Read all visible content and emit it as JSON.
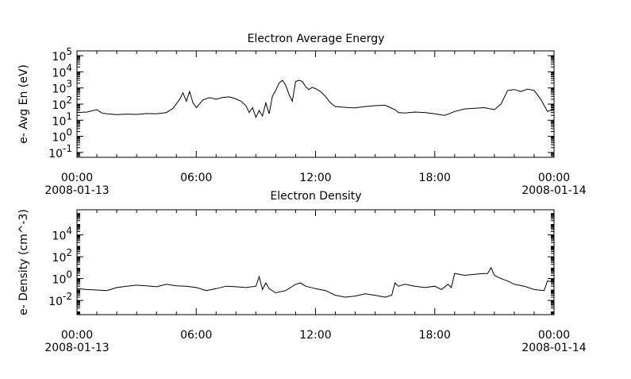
{
  "chart_data": [
    {
      "type": "line",
      "title": "Electron Average Energy",
      "xlabel": "",
      "ylabel": "e- Avg En (eV)",
      "yscale": "log",
      "ylim": [
        0.05,
        200000
      ],
      "xlim": [
        "2008-01-13 00:00",
        "2008-01-14 00:00"
      ],
      "grid": false,
      "x_ticks": [
        {
          "time": "00:00",
          "date": "2008-01-13"
        },
        {
          "time": "06:00",
          "date": ""
        },
        {
          "time": "12:00",
          "date": ""
        },
        {
          "time": "18:00",
          "date": ""
        },
        {
          "time": "00:00",
          "date": "2008-01-14"
        }
      ],
      "y_ticks": [
        {
          "base": "10",
          "exp": "-1",
          "value": 0.1
        },
        {
          "base": "10",
          "exp": "0",
          "value": 1
        },
        {
          "base": "10",
          "exp": "1",
          "value": 10
        },
        {
          "base": "10",
          "exp": "2",
          "value": 100
        },
        {
          "base": "10",
          "exp": "3",
          "value": 1000
        },
        {
          "base": "10",
          "exp": "4",
          "value": 10000
        },
        {
          "base": "10",
          "exp": "5",
          "value": 100000
        }
      ],
      "x": [
        "00:00",
        "00:30",
        "01:00",
        "01:15",
        "01:30",
        "02:00",
        "02:30",
        "03:00",
        "03:30",
        "04:00",
        "04:30",
        "04:50",
        "05:10",
        "05:20",
        "05:30",
        "05:40",
        "05:50",
        "06:00",
        "06:20",
        "06:40",
        "07:00",
        "07:20",
        "07:40",
        "08:00",
        "08:15",
        "08:30",
        "08:40",
        "08:50",
        "09:00",
        "09:10",
        "09:20",
        "09:30",
        "09:40",
        "09:50",
        "10:00",
        "10:10",
        "10:20",
        "10:30",
        "10:40",
        "10:50",
        "11:00",
        "11:10",
        "11:20",
        "11:30",
        "11:40",
        "11:50",
        "12:00",
        "12:15",
        "12:30",
        "12:45",
        "13:00",
        "13:20",
        "13:40",
        "14:00",
        "14:30",
        "15:00",
        "15:30",
        "16:00",
        "16:10",
        "16:30",
        "17:00",
        "17:30",
        "18:00",
        "18:30",
        "19:00",
        "19:30",
        "20:00",
        "20:30",
        "21:00",
        "21:20",
        "21:40",
        "22:00",
        "22:20",
        "22:40",
        "23:00",
        "23:20",
        "23:40",
        "24:00"
      ],
      "values": [
        30,
        32,
        45,
        28,
        25,
        22,
        24,
        23,
        26,
        25,
        30,
        55,
        200,
        500,
        150,
        600,
        120,
        60,
        180,
        250,
        200,
        260,
        280,
        210,
        150,
        80,
        30,
        60,
        15,
        40,
        18,
        120,
        25,
        300,
        700,
        2000,
        3000,
        1500,
        400,
        150,
        2500,
        3000,
        2600,
        1200,
        800,
        1100,
        900,
        600,
        300,
        120,
        70,
        65,
        60,
        58,
        70,
        80,
        85,
        45,
        30,
        28,
        32,
        30,
        25,
        20,
        35,
        50,
        55,
        60,
        45,
        100,
        700,
        800,
        600,
        850,
        700,
        200,
        35,
        50
      ]
    },
    {
      "type": "line",
      "title": "Electron Density",
      "xlabel": "",
      "ylabel": "e- Density (cm^-3)",
      "yscale": "log",
      "ylim": [
        0.0005,
        2000000
      ],
      "xlim": [
        "2008-01-13 00:00",
        "2008-01-14 00:00"
      ],
      "grid": false,
      "x_ticks": [
        {
          "time": "00:00",
          "date": "2008-01-13"
        },
        {
          "time": "06:00",
          "date": ""
        },
        {
          "time": "12:00",
          "date": ""
        },
        {
          "time": "18:00",
          "date": ""
        },
        {
          "time": "00:00",
          "date": "2008-01-14"
        }
      ],
      "y_ticks": [
        {
          "base": "10",
          "exp": "-2",
          "value": 0.01
        },
        {
          "base": "10",
          "exp": "0",
          "value": 1
        },
        {
          "base": "10",
          "exp": "2",
          "value": 100
        },
        {
          "base": "10",
          "exp": "4",
          "value": 10000
        }
      ],
      "x": [
        "00:00",
        "00:30",
        "01:00",
        "01:30",
        "02:00",
        "02:30",
        "03:00",
        "03:30",
        "04:00",
        "04:30",
        "05:00",
        "05:30",
        "06:00",
        "06:30",
        "07:00",
        "07:30",
        "08:00",
        "08:30",
        "09:00",
        "09:10",
        "09:20",
        "09:30",
        "09:40",
        "10:00",
        "10:30",
        "11:00",
        "11:15",
        "11:30",
        "12:00",
        "12:30",
        "13:00",
        "13:30",
        "14:00",
        "14:30",
        "15:00",
        "15:30",
        "15:50",
        "16:00",
        "16:10",
        "16:30",
        "17:00",
        "17:30",
        "18:00",
        "18:20",
        "18:40",
        "18:50",
        "19:00",
        "19:30",
        "20:00",
        "20:20",
        "20:40",
        "20:50",
        "21:00",
        "21:20",
        "21:40",
        "22:00",
        "22:30",
        "23:00",
        "23:30",
        "23:40",
        "24:00"
      ],
      "values": [
        0.12,
        0.1,
        0.09,
        0.08,
        0.15,
        0.2,
        0.25,
        0.22,
        0.18,
        0.3,
        0.22,
        0.2,
        0.15,
        0.08,
        0.12,
        0.2,
        0.18,
        0.15,
        0.2,
        1.5,
        0.1,
        0.4,
        0.12,
        0.05,
        0.08,
        0.3,
        0.4,
        0.2,
        0.12,
        0.08,
        0.03,
        0.02,
        0.025,
        0.04,
        0.03,
        0.02,
        0.03,
        0.4,
        0.2,
        0.3,
        0.2,
        0.15,
        0.2,
        0.1,
        0.3,
        0.15,
        3,
        2,
        2.5,
        2.8,
        3,
        10,
        2,
        1,
        0.6,
        0.3,
        0.2,
        0.1,
        0.08,
        0.6,
        0.5
      ]
    }
  ]
}
